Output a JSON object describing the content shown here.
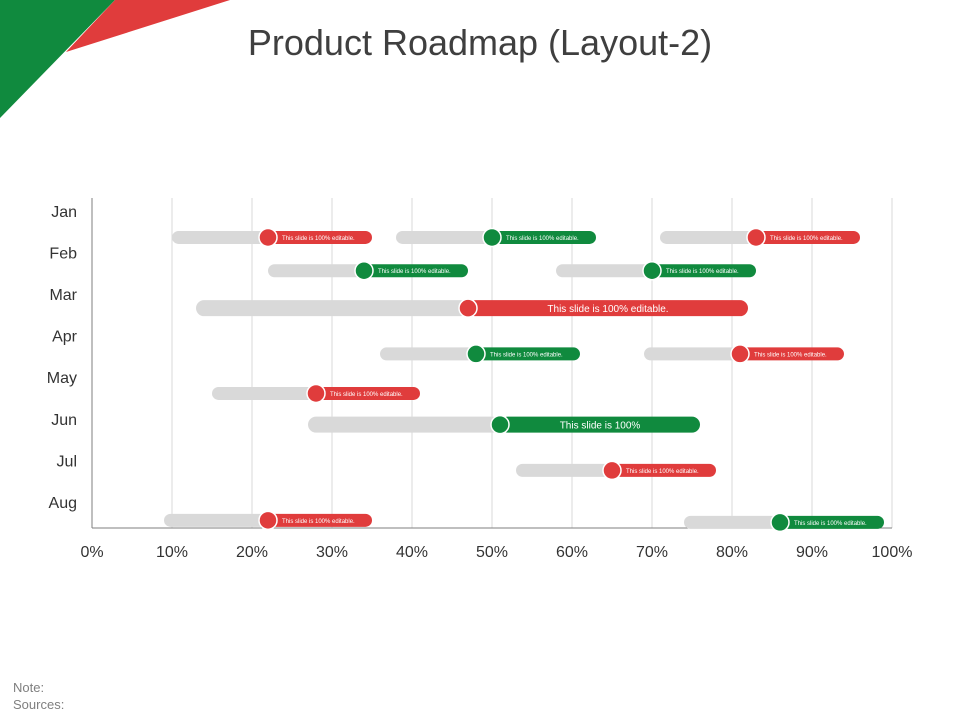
{
  "colors": {
    "red": "#e03c3c",
    "green": "#108a3e",
    "track": "#d9d9d9",
    "grid": "#d9d9d9",
    "axis": "#7f7f7f"
  },
  "slide": {
    "title": "Product Roadmap (Layout-2)",
    "note_label": "Note:",
    "sources_label": "Sources:"
  },
  "chart_data": {
    "type": "range-bar",
    "title": "Product Roadmap (Layout-2)",
    "categories": [
      "Jan",
      "Feb",
      "Mar",
      "Apr",
      "May",
      "Jun",
      "Jul",
      "Aug"
    ],
    "x_ticks": [
      "0%",
      "10%",
      "20%",
      "30%",
      "40%",
      "50%",
      "60%",
      "70%",
      "80%",
      "90%",
      "100%"
    ],
    "xlim": [
      0,
      100
    ],
    "grid": true,
    "tasks": [
      {
        "category": "Jan",
        "start": 10,
        "marker": 22,
        "end": 35,
        "color": "red",
        "label": "This slide is 100% editable.",
        "label_size": "small",
        "lane": 0.4
      },
      {
        "category": "Jan",
        "start": 38,
        "marker": 50,
        "end": 63,
        "color": "green",
        "label": "This slide is 100% editable.",
        "label_size": "small",
        "lane": 0.4
      },
      {
        "category": "Jan",
        "start": 71,
        "marker": 83,
        "end": 96,
        "color": "red",
        "label": "This slide is 100% editable.",
        "label_size": "small",
        "lane": 0.4
      },
      {
        "category": "Feb",
        "start": 22,
        "marker": 34,
        "end": 47,
        "color": "green",
        "label": "This slide is 100% editable.",
        "label_size": "small",
        "lane": 0.2
      },
      {
        "category": "Feb",
        "start": 58,
        "marker": 70,
        "end": 83,
        "color": "green",
        "label": "This slide is 100% editable.",
        "label_size": "small",
        "lane": 0.2
      },
      {
        "category": "Mar",
        "start": 13,
        "marker": 47,
        "end": 82,
        "color": "red",
        "label": "This slide is 100% editable.",
        "label_size": "large",
        "lane": 0.1
      },
      {
        "category": "Apr",
        "start": 36,
        "marker": 48,
        "end": 61,
        "color": "green",
        "label": "This slide is 100% editable.",
        "label_size": "small",
        "lane": 0.2
      },
      {
        "category": "Apr",
        "start": 69,
        "marker": 81,
        "end": 94,
        "color": "red",
        "label": "This slide is 100% editable.",
        "label_size": "small",
        "lane": 0.2
      },
      {
        "category": "May",
        "start": 15,
        "marker": 28,
        "end": 41,
        "color": "red",
        "label": "This slide is 100% editable.",
        "label_size": "small",
        "lane": 0.15
      },
      {
        "category": "Jun",
        "start": 27,
        "marker": 51,
        "end": 76,
        "color": "green",
        "label": "This slide is 100%",
        "label_size": "large",
        "lane": -0.1
      },
      {
        "category": "Jul",
        "start": 53,
        "marker": 65,
        "end": 78,
        "color": "red",
        "label": "This slide is 100% editable.",
        "label_size": "small",
        "lane": 0.0
      },
      {
        "category": "Aug",
        "start": 9,
        "marker": 22,
        "end": 35,
        "color": "red",
        "label": "This slide is 100% editable.",
        "label_size": "small",
        "lane": 0.2
      },
      {
        "category": "Aug",
        "start": 74,
        "marker": 86,
        "end": 99,
        "color": "green",
        "label": "This slide is 100% editable.",
        "label_size": "small",
        "lane": 0.25
      }
    ]
  }
}
